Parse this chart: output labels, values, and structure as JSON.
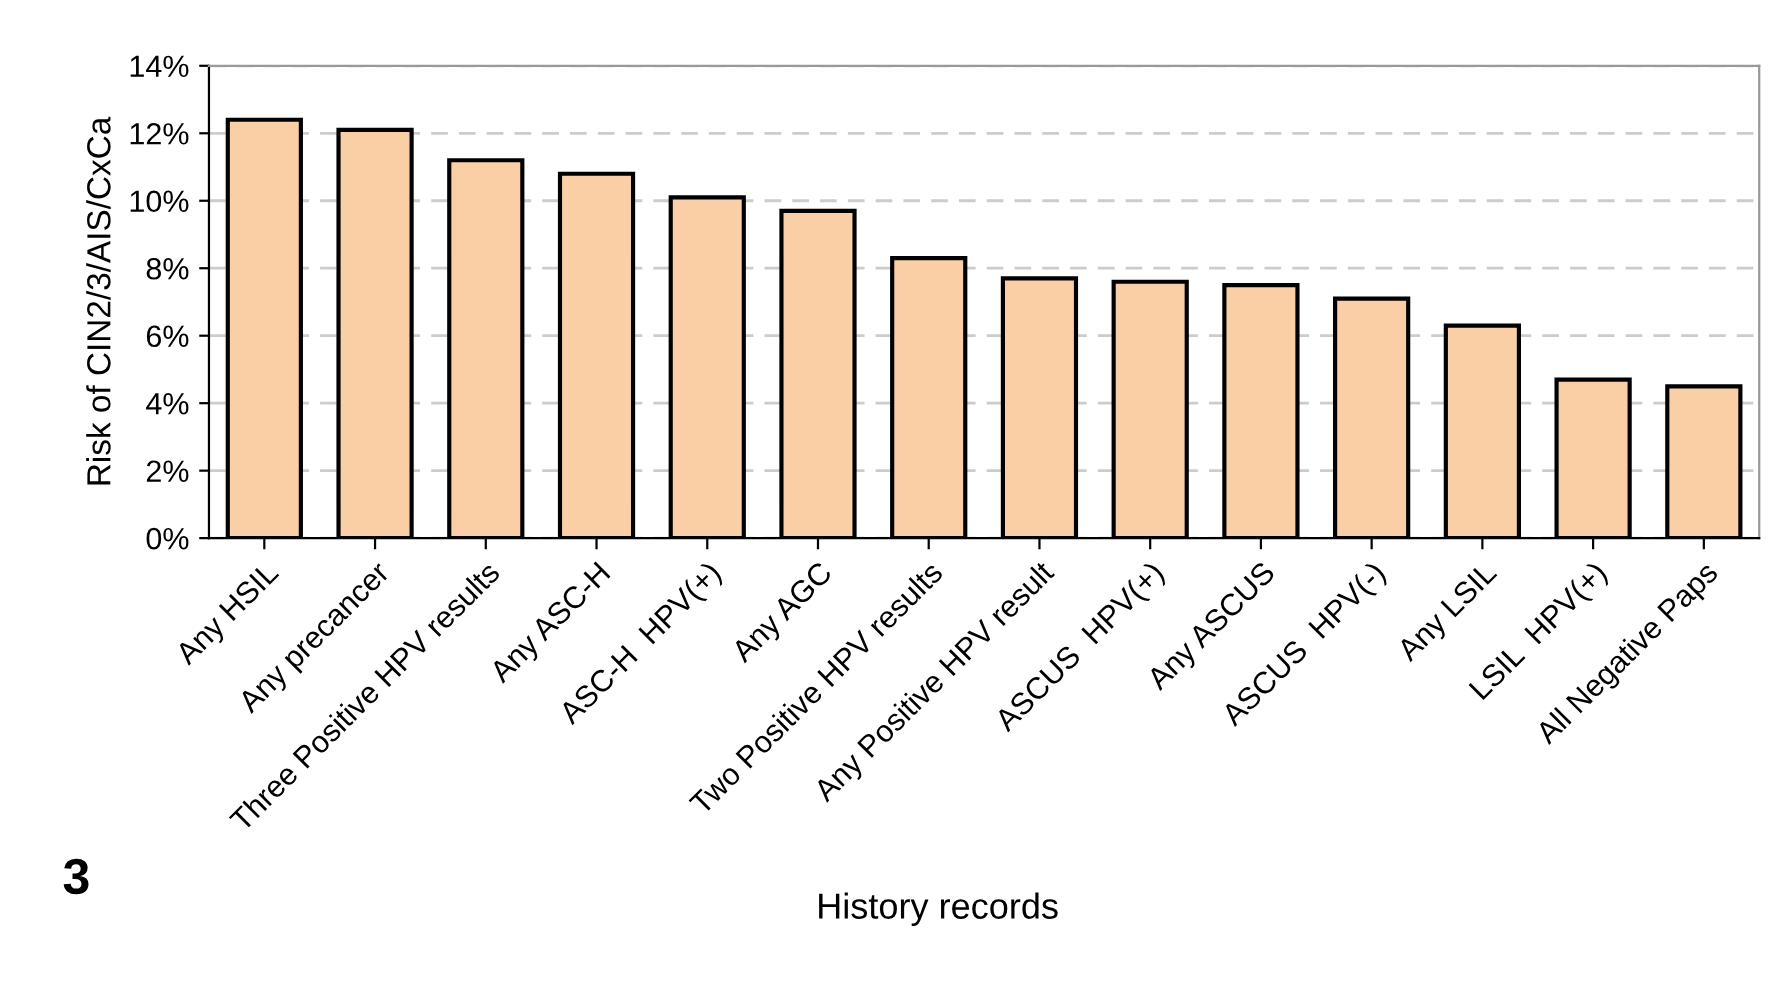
{
  "chart_data": {
    "type": "bar",
    "xlabel": "History records",
    "ylabel": "Risk of CIN2/3/AIS/CxCa",
    "categories": [
      "Any HSIL",
      "Any precancer",
      "Three Positive HPV results",
      "Any ASC-H",
      "ASC-H  HPV(+)",
      "Any AGC",
      "Two Positive HPV results",
      "Any Positive HPV result",
      "ASCUS  HPV(+)",
      "Any ASCUS",
      "ASCUS  HPV(-)",
      "Any LSIL",
      "LSIL  HPV(+)",
      "All Negative Paps"
    ],
    "values": [
      12.4,
      12.1,
      11.2,
      10.8,
      10.1,
      9.7,
      8.3,
      7.7,
      7.6,
      7.5,
      7.1,
      6.3,
      4.7,
      4.5
    ],
    "color": "#fbcfa6",
    "ylim": [
      0,
      14
    ],
    "yticks": [
      {
        "value": 0,
        "label": "0%"
      },
      {
        "value": 2,
        "label": "2%"
      },
      {
        "value": 4,
        "label": "4%"
      },
      {
        "value": 6,
        "label": "6%"
      },
      {
        "value": 8,
        "label": "8%"
      },
      {
        "value": 10,
        "label": "10%"
      },
      {
        "value": 12,
        "label": "12%"
      },
      {
        "value": 14,
        "label": "14%"
      }
    ],
    "grid": "y",
    "legend": false,
    "annotations": [
      "3"
    ]
  }
}
